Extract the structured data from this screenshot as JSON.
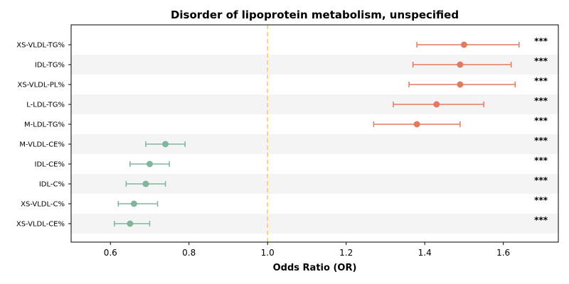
{
  "chart_data": {
    "type": "scatter",
    "title": "Disorder of lipoprotein metabolism, unspecified",
    "xlabel": "Odds Ratio (OR)",
    "ylabel": "",
    "xlim": [
      0.5,
      1.74
    ],
    "xticks": [
      "0.6",
      "0.8",
      "1.0",
      "1.2",
      "1.4",
      "1.6"
    ],
    "reference_line": 1.0,
    "grid": false,
    "colors": {
      "risk": "#e07b61",
      "protective": "#80b59b",
      "reference": "#f5c77e",
      "band": "#f4f4f4"
    },
    "rows": [
      {
        "label": "XS-VLDL-TG%",
        "or": 1.5,
        "lo": 1.38,
        "hi": 1.64,
        "sig": "***",
        "group": "risk"
      },
      {
        "label": "IDL-TG%",
        "or": 1.49,
        "lo": 1.37,
        "hi": 1.62,
        "sig": "***",
        "group": "risk"
      },
      {
        "label": "XS-VLDL-PL%",
        "or": 1.49,
        "lo": 1.36,
        "hi": 1.63,
        "sig": "***",
        "group": "risk"
      },
      {
        "label": "L-LDL-TG%",
        "or": 1.43,
        "lo": 1.32,
        "hi": 1.55,
        "sig": "***",
        "group": "risk"
      },
      {
        "label": "M-LDL-TG%",
        "or": 1.38,
        "lo": 1.27,
        "hi": 1.49,
        "sig": "***",
        "group": "risk"
      },
      {
        "label": "M-VLDL-CE%",
        "or": 0.74,
        "lo": 0.69,
        "hi": 0.79,
        "sig": "***",
        "group": "protective"
      },
      {
        "label": "IDL-CE%",
        "or": 0.7,
        "lo": 0.65,
        "hi": 0.75,
        "sig": "***",
        "group": "protective"
      },
      {
        "label": "IDL-C%",
        "or": 0.69,
        "lo": 0.64,
        "hi": 0.74,
        "sig": "***",
        "group": "protective"
      },
      {
        "label": "XS-VLDL-C%",
        "or": 0.66,
        "lo": 0.62,
        "hi": 0.72,
        "sig": "***",
        "group": "protective"
      },
      {
        "label": "XS-VLDL-CE%",
        "or": 0.65,
        "lo": 0.61,
        "hi": 0.7,
        "sig": "***",
        "group": "protective"
      }
    ]
  }
}
